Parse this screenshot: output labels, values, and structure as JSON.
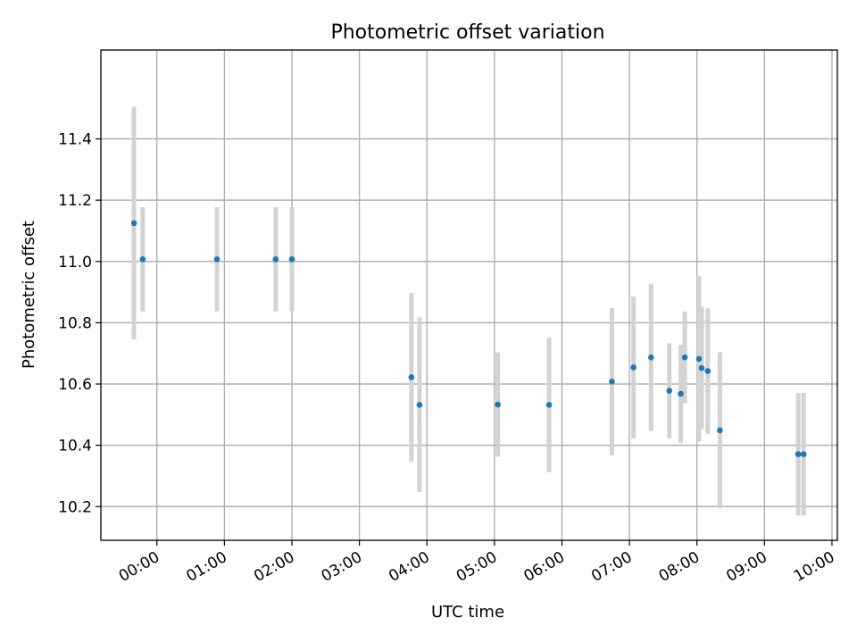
{
  "chart_data": {
    "type": "scatter",
    "title": "Photometric offset variation",
    "xlabel": "UTC time",
    "ylabel": "Photometric offset",
    "x_unit": "hours (UTC)",
    "xlim": [
      -0.83,
      10.08
    ],
    "ylim": [
      10.09,
      11.69
    ],
    "x_ticks": [
      {
        "value": 0,
        "label": "00:00"
      },
      {
        "value": 1,
        "label": "01:00"
      },
      {
        "value": 2,
        "label": "02:00"
      },
      {
        "value": 3,
        "label": "03:00"
      },
      {
        "value": 4,
        "label": "04:00"
      },
      {
        "value": 5,
        "label": "05:00"
      },
      {
        "value": 6,
        "label": "06:00"
      },
      {
        "value": 7,
        "label": "07:00"
      },
      {
        "value": 8,
        "label": "08:00"
      },
      {
        "value": 9,
        "label": "09:00"
      },
      {
        "value": 10,
        "label": "10:00"
      }
    ],
    "y_ticks": [
      {
        "value": 10.2,
        "label": "10.2"
      },
      {
        "value": 10.4,
        "label": "10.4"
      },
      {
        "value": 10.6,
        "label": "10.6"
      },
      {
        "value": 10.8,
        "label": "10.8"
      },
      {
        "value": 11.0,
        "label": "11.0"
      },
      {
        "value": 11.2,
        "label": "11.2"
      },
      {
        "value": 11.4,
        "label": "11.4"
      }
    ],
    "grid": true,
    "marker_color": "#1f77b4",
    "errorbar_color": "#d3d3d3",
    "points": [
      {
        "x": -0.34,
        "y": 11.125,
        "yerr": 0.38
      },
      {
        "x": -0.21,
        "y": 11.007,
        "yerr": 0.17
      },
      {
        "x": 0.89,
        "y": 11.007,
        "yerr": 0.17
      },
      {
        "x": 1.76,
        "y": 11.007,
        "yerr": 0.17
      },
      {
        "x": 2.0,
        "y": 11.007,
        "yerr": 0.17
      },
      {
        "x": 3.77,
        "y": 10.622,
        "yerr": 0.275
      },
      {
        "x": 3.89,
        "y": 10.532,
        "yerr": 0.285
      },
      {
        "x": 5.05,
        "y": 10.533,
        "yerr": 0.17
      },
      {
        "x": 5.81,
        "y": 10.532,
        "yerr": 0.22
      },
      {
        "x": 6.74,
        "y": 10.608,
        "yerr": 0.24
      },
      {
        "x": 7.06,
        "y": 10.654,
        "yerr": 0.232
      },
      {
        "x": 7.32,
        "y": 10.687,
        "yerr": 0.24
      },
      {
        "x": 7.59,
        "y": 10.578,
        "yerr": 0.155
      },
      {
        "x": 7.76,
        "y": 10.568,
        "yerr": 0.16
      },
      {
        "x": 7.82,
        "y": 10.687,
        "yerr": 0.15
      },
      {
        "x": 8.03,
        "y": 10.682,
        "yerr": 0.27
      },
      {
        "x": 8.07,
        "y": 10.652,
        "yerr": 0.2
      },
      {
        "x": 8.16,
        "y": 10.642,
        "yerr": 0.205
      },
      {
        "x": 8.34,
        "y": 10.449,
        "yerr": 0.255
      },
      {
        "x": 9.5,
        "y": 10.371,
        "yerr": 0.2
      },
      {
        "x": 9.58,
        "y": 10.371,
        "yerr": 0.2
      }
    ]
  }
}
